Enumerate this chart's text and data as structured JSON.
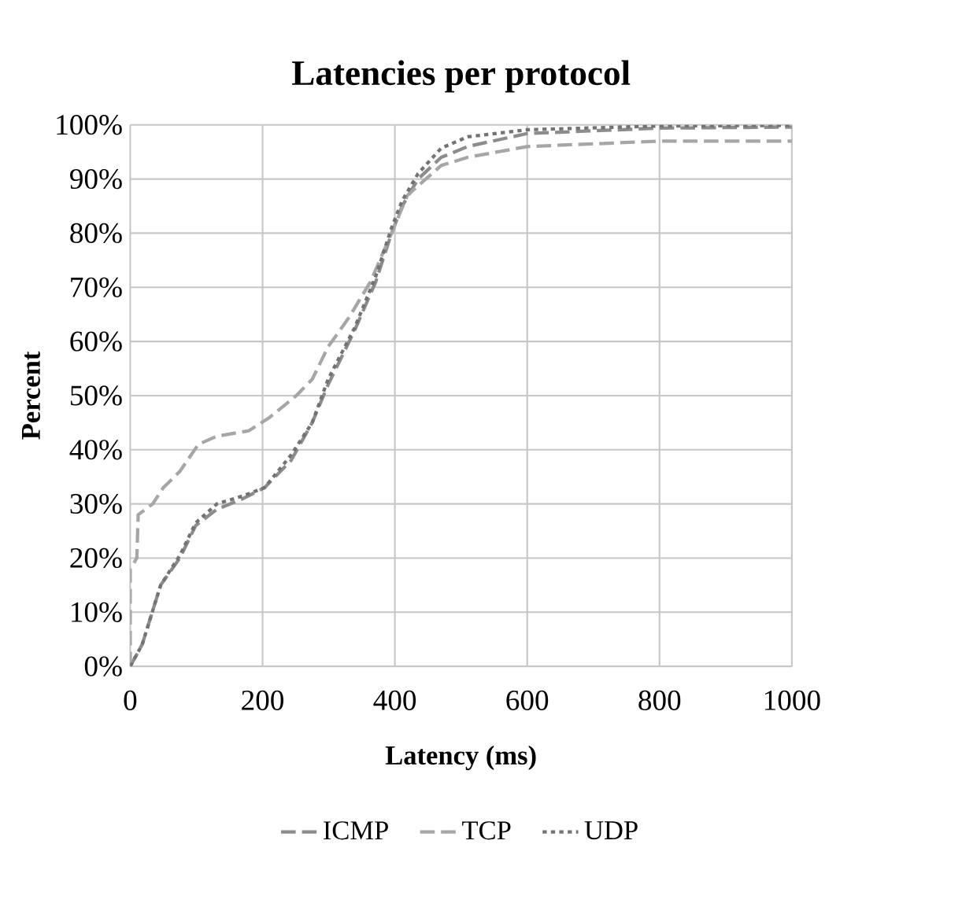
{
  "chart_data": {
    "type": "line",
    "title": "Latencies per protocol",
    "xlabel": "Latency (ms)",
    "ylabel": "Percent",
    "xlim": [
      0,
      1000
    ],
    "xticks": [
      0,
      200,
      400,
      600,
      800,
      1000
    ],
    "ylim": [
      0,
      100
    ],
    "yticks": [
      {
        "value": 0,
        "label": "0%"
      },
      {
        "value": 10,
        "label": "10%"
      },
      {
        "value": 20,
        "label": "20%"
      },
      {
        "value": 30,
        "label": "30%"
      },
      {
        "value": 40,
        "label": "40%"
      },
      {
        "value": 50,
        "label": "50%"
      },
      {
        "value": 60,
        "label": "60%"
      },
      {
        "value": 70,
        "label": "70%"
      },
      {
        "value": 80,
        "label": "80%"
      },
      {
        "value": 90,
        "label": "90%"
      },
      {
        "value": 100,
        "label": "100%"
      }
    ],
    "grid": true,
    "legend": "bottom",
    "marker": "none",
    "series": [
      {
        "name": "ICMP",
        "color": "#8c8c8c",
        "line_style": "dashed",
        "x": [
          0,
          18,
          46,
          75,
          99,
          131,
          171,
          203,
          243,
          275,
          299,
          339,
          371,
          395,
          411,
          435,
          470,
          510,
          600,
          800,
          1000
        ],
        "values": [
          0,
          4,
          15,
          20,
          26,
          29,
          31,
          33,
          38,
          45,
          52,
          62,
          71,
          80,
          85,
          90,
          94,
          96,
          98.4,
          99.4,
          99.6
        ]
      },
      {
        "name": "TCP",
        "color": "#a6a6a6",
        "line_style": "dashed",
        "x": [
          0,
          0,
          10,
          12,
          34,
          50,
          75,
          103,
          131,
          179,
          211,
          251,
          275,
          299,
          331,
          363,
          395,
          419,
          470,
          510,
          600,
          800,
          1000
        ],
        "values": [
          0,
          18,
          20,
          28,
          30,
          33,
          36,
          41,
          42.5,
          43.5,
          46,
          50,
          53,
          59,
          64.5,
          71,
          80,
          87,
          92.5,
          94,
          96,
          97,
          97
        ]
      },
      {
        "name": "UDP",
        "color": "#737373",
        "line_style": "dotted",
        "x": [
          0,
          18,
          46,
          75,
          99,
          131,
          171,
          203,
          243,
          275,
          299,
          339,
          371,
          395,
          411,
          435,
          470,
          510,
          600,
          800,
          1000
        ],
        "values": [
          0,
          4,
          15,
          20.5,
          26.5,
          30,
          31.5,
          33,
          39,
          45,
          53,
          62.5,
          72,
          81,
          86,
          91,
          95.7,
          97.8,
          99.1,
          99.8,
          99.9
        ]
      }
    ]
  }
}
